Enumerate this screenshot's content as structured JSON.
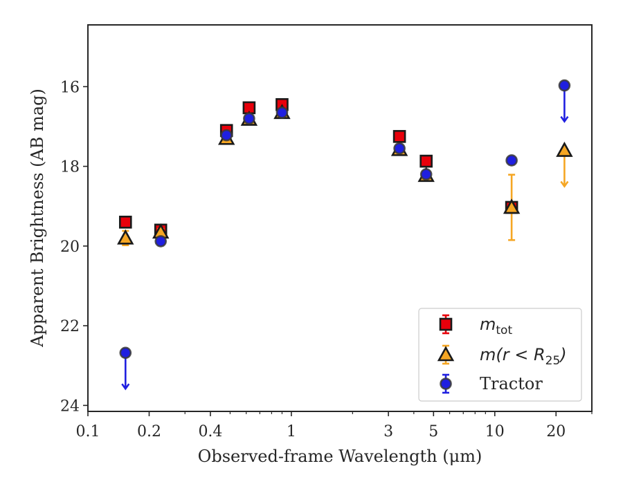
{
  "chart_data": {
    "type": "scatter",
    "xlabel": "Observed-frame Wavelength (μm)",
    "ylabel": "Apparent Brightness (AB mag)",
    "x_scale": "log",
    "xlim": [
      0.1,
      30
    ],
    "ylim": [
      24.15,
      14.45
    ],
    "y_inverted": true,
    "x_ticks": [
      {
        "value": 0.1,
        "label": "0.1"
      },
      {
        "value": 0.2,
        "label": "0.2"
      },
      {
        "value": 0.4,
        "label": "0.4"
      },
      {
        "value": 1,
        "label": "1"
      },
      {
        "value": 3,
        "label": "3"
      },
      {
        "value": 5,
        "label": "5"
      },
      {
        "value": 10,
        "label": "10"
      },
      {
        "value": 20,
        "label": "20"
      }
    ],
    "y_ticks": [
      {
        "value": 16,
        "label": "16"
      },
      {
        "value": 18,
        "label": "18"
      },
      {
        "value": 20,
        "label": "20"
      },
      {
        "value": 22,
        "label": "22"
      },
      {
        "value": 24,
        "label": "24"
      }
    ],
    "grid": false,
    "legend_position": "lower-right",
    "series": [
      {
        "name": "m_tot",
        "legend_base": "m",
        "legend_sub": "tot",
        "legend_suffix": "",
        "marker": "square",
        "color": "#e8000b",
        "edge": "#1a1a1a",
        "points": [
          {
            "x": 0.153,
            "y": 19.4,
            "err": 0.05
          },
          {
            "x": 0.228,
            "y": 19.6,
            "err": 0.05
          },
          {
            "x": 0.48,
            "y": 17.1,
            "err": 0.05
          },
          {
            "x": 0.62,
            "y": 16.53,
            "err": 0.05
          },
          {
            "x": 0.9,
            "y": 16.45,
            "err": 0.05
          },
          {
            "x": 3.4,
            "y": 17.25,
            "err": 0.05
          },
          {
            "x": 4.6,
            "y": 17.87,
            "err": 0.05
          },
          {
            "x": 12.1,
            "y": 19.03,
            "err": 0.06
          }
        ]
      },
      {
        "name": "m(r < R_25)",
        "legend_base": "m(r < R",
        "legend_sub": "25",
        "legend_suffix": ")",
        "marker": "triangle",
        "color": "#f5a623",
        "edge": "#1a1a1a",
        "points": [
          {
            "x": 0.153,
            "y": 19.8,
            "err": 0.18
          },
          {
            "x": 0.228,
            "y": 19.65,
            "err": 0.08
          },
          {
            "x": 0.48,
            "y": 17.3,
            "err": 0.05
          },
          {
            "x": 0.62,
            "y": 16.82,
            "err": 0.05
          },
          {
            "x": 0.9,
            "y": 16.65,
            "err": 0.05
          },
          {
            "x": 3.4,
            "y": 17.58,
            "err": 0.05
          },
          {
            "x": 4.6,
            "y": 18.23,
            "err": 0.05
          },
          {
            "x": 12.1,
            "y": 19.03,
            "err": 0.82
          },
          {
            "x": 22.0,
            "y": 17.6,
            "upper_limit": true
          }
        ]
      },
      {
        "name": "Tractor",
        "legend_base": "Tractor",
        "legend_sub": "",
        "legend_suffix": "",
        "marker": "circle",
        "color": "#1f1fe0",
        "edge": "#3a3a3a",
        "points": [
          {
            "x": 0.153,
            "y": 22.68,
            "upper_limit": true
          },
          {
            "x": 0.228,
            "y": 19.88,
            "err": 0.05
          },
          {
            "x": 0.48,
            "y": 17.22,
            "err": 0.05
          },
          {
            "x": 0.62,
            "y": 16.8,
            "err": 0.05
          },
          {
            "x": 0.9,
            "y": 16.65,
            "err": 0.05
          },
          {
            "x": 3.4,
            "y": 17.55,
            "err": 0.05
          },
          {
            "x": 4.6,
            "y": 18.2,
            "err": 0.08
          },
          {
            "x": 12.1,
            "y": 17.85,
            "err": 0.05
          },
          {
            "x": 22.0,
            "y": 15.97,
            "upper_limit": true
          }
        ]
      }
    ]
  }
}
